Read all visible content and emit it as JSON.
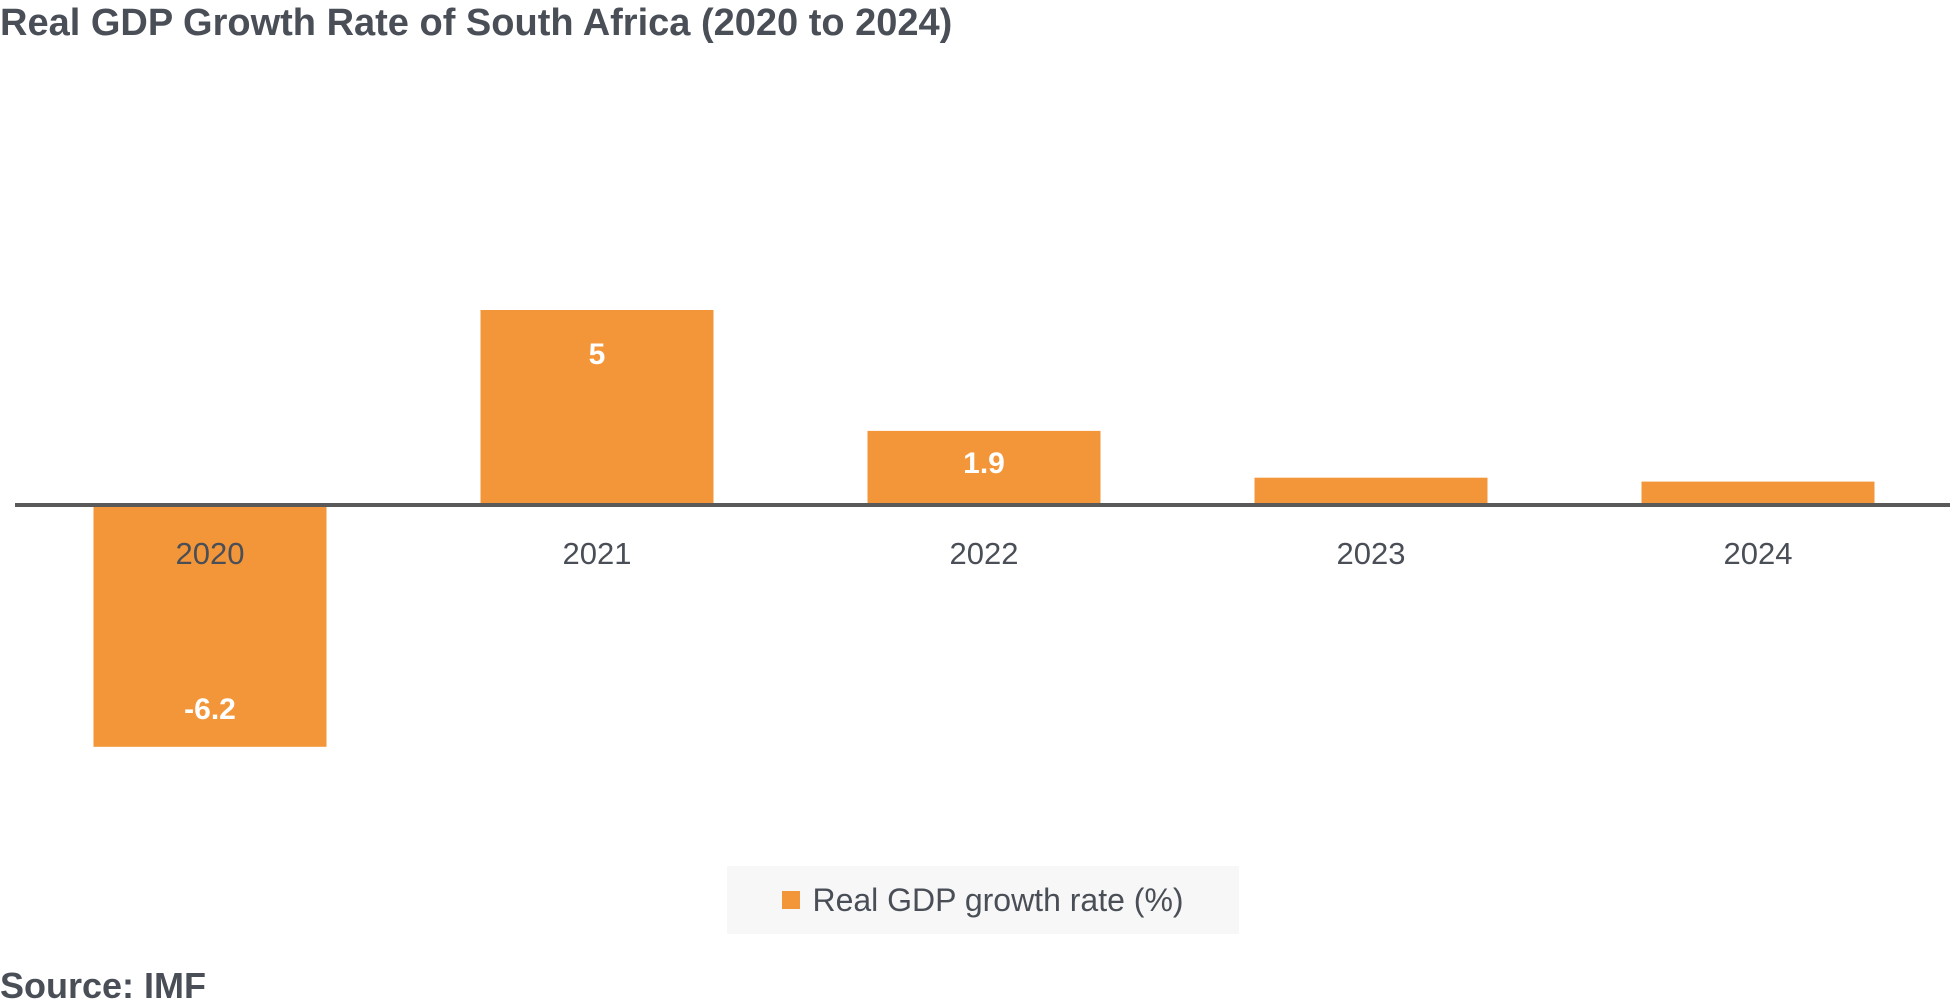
{
  "chart_data": {
    "type": "bar",
    "title": "Real GDP Growth Rate of South Africa (2020 to 2024)",
    "categories": [
      "2020",
      "2021",
      "2022",
      "2023",
      "2024"
    ],
    "series": [
      {
        "name": "Real GDP growth rate (%)",
        "values": [
          -6.2,
          5,
          1.9,
          0.7,
          0.6
        ],
        "data_labels": [
          "-6.2",
          "5",
          "1.9",
          "",
          ""
        ]
      }
    ],
    "xlabel": "",
    "ylabel": "",
    "ylim": [
      -6.2,
      5
    ],
    "grid": false,
    "legend_position": "bottom",
    "source": "Source: IMF",
    "colors": {
      "bar": "#f39639",
      "axis": "#595959",
      "text": "#4a4f57",
      "label_text": "#ffffff"
    }
  }
}
